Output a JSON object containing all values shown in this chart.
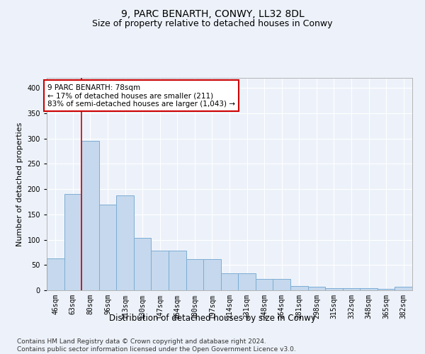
{
  "title": "9, PARC BENARTH, CONWY, LL32 8DL",
  "subtitle": "Size of property relative to detached houses in Conwy",
  "xlabel": "Distribution of detached houses by size in Conwy",
  "ylabel": "Number of detached properties",
  "categories": [
    "46sqm",
    "63sqm",
    "80sqm",
    "96sqm",
    "113sqm",
    "130sqm",
    "147sqm",
    "164sqm",
    "180sqm",
    "197sqm",
    "214sqm",
    "231sqm",
    "248sqm",
    "264sqm",
    "281sqm",
    "298sqm",
    "315sqm",
    "332sqm",
    "348sqm",
    "365sqm",
    "382sqm"
  ],
  "values": [
    63,
    190,
    295,
    170,
    188,
    104,
    78,
    78,
    61,
    61,
    33,
    33,
    22,
    23,
    8,
    7,
    4,
    4,
    4,
    3,
    7
  ],
  "bar_color": "#c5d8ed",
  "bar_edge_color": "#7dadd4",
  "annotation_text": "9 PARC BENARTH: 78sqm\n← 17% of detached houses are smaller (211)\n83% of semi-detached houses are larger (1,043) →",
  "vline_index": 2,
  "vline_color": "#cc0000",
  "annotation_box_edge": "#cc0000",
  "ylim": [
    0,
    420
  ],
  "yticks": [
    0,
    50,
    100,
    150,
    200,
    250,
    300,
    350,
    400
  ],
  "footer": "Contains HM Land Registry data © Crown copyright and database right 2024.\nContains public sector information licensed under the Open Government Licence v3.0.",
  "background_color": "#edf2fa",
  "plot_bg_color": "#edf2fa",
  "grid_color": "#ffffff",
  "title_fontsize": 10,
  "subtitle_fontsize": 9,
  "ylabel_fontsize": 8,
  "xlabel_fontsize": 8.5,
  "tick_fontsize": 7,
  "footer_fontsize": 6.5
}
